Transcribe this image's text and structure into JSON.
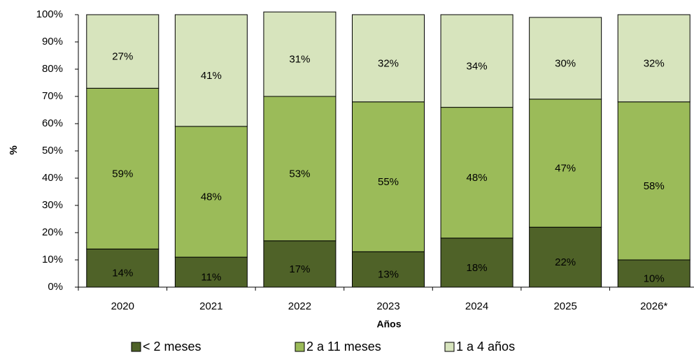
{
  "chart_data": {
    "type": "stacked_bar",
    "categories": [
      "2020",
      "2021",
      "2022",
      "2023",
      "2024",
      "2025",
      "2026*"
    ],
    "x_label": "Años",
    "y_label": "%",
    "ylim": [
      0,
      100
    ],
    "yticks": [
      {
        "value": 0,
        "label": "0%"
      },
      {
        "value": 10,
        "label": "10%"
      },
      {
        "value": 20,
        "label": "20%"
      },
      {
        "value": 30,
        "label": "30%"
      },
      {
        "value": 40,
        "label": "40%"
      },
      {
        "value": 50,
        "label": "50%"
      },
      {
        "value": 60,
        "label": "60%"
      },
      {
        "value": 70,
        "label": "70%"
      },
      {
        "value": 80,
        "label": "80%"
      },
      {
        "value": 90,
        "label": "90%"
      },
      {
        "value": 100,
        "label": "100%"
      }
    ],
    "legend": "bottom",
    "series": [
      {
        "name": "< 2 meses",
        "color": "#4f6228",
        "values": [
          14,
          11,
          17,
          13,
          18,
          22,
          10
        ],
        "value_labels": [
          "14%",
          "11%",
          "17%",
          "13%",
          "18%",
          "22%",
          "10%"
        ]
      },
      {
        "name": "2 a 11 meses",
        "color": "#9bbb59",
        "values": [
          59,
          48,
          53,
          55,
          48,
          47,
          58
        ],
        "value_labels": [
          "59%",
          "48%",
          "53%",
          "55%",
          "48%",
          "47%",
          "58%"
        ]
      },
      {
        "name": "1 a 4 años",
        "color": "#d7e4bd",
        "values": [
          27,
          41,
          31,
          32,
          34,
          30,
          32
        ],
        "value_labels": [
          "27%",
          "41%",
          "31%",
          "32%",
          "34%",
          "30%",
          "32%"
        ]
      }
    ]
  }
}
